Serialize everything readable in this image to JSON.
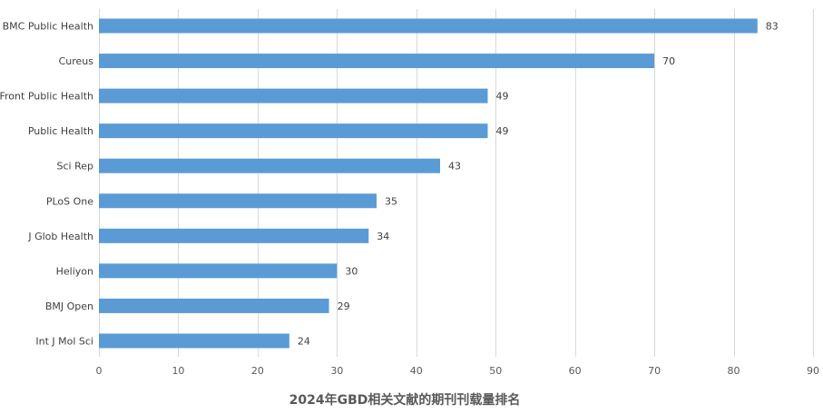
{
  "chart_data": {
    "type": "bar",
    "orientation": "horizontal",
    "title": "2024年GBD相关文献的期刊刊载量排名",
    "xlabel": "",
    "ylabel": "",
    "categories": [
      "BMC Public Health",
      "Cureus",
      "Front Public Health",
      "Public Health",
      "Sci Rep",
      "PLoS One",
      "J Glob Health",
      "Heliyon",
      "BMJ Open",
      "Int J Mol Sci"
    ],
    "values": [
      83,
      70,
      49,
      49,
      43,
      35,
      34,
      30,
      29,
      24
    ],
    "xlim": [
      0,
      90
    ],
    "xticks": [
      0,
      10,
      20,
      30,
      40,
      50,
      60,
      70,
      80,
      90
    ],
    "grid": "vertical",
    "data_labels": true,
    "bar_color": "#5b9bd5",
    "grid_color": "#d9d9d9"
  }
}
